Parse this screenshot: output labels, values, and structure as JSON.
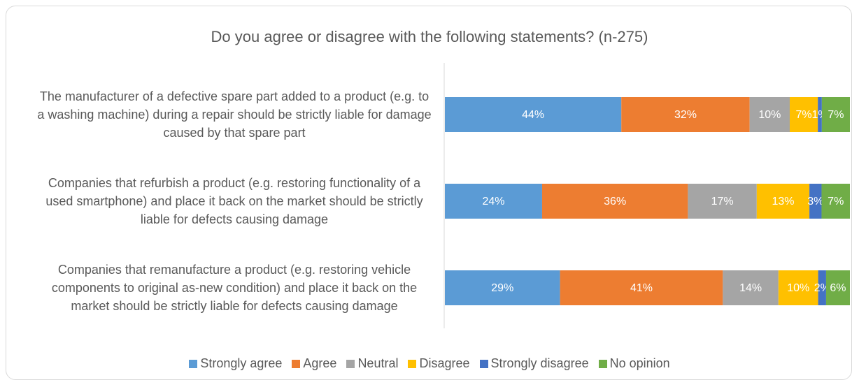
{
  "chart_data": {
    "type": "bar",
    "title": "Do you agree or disagree with the following statements? (n-275)",
    "categories": [
      "The manufacturer of a defective spare part added to a product (e.g. to a washing machine) during a repair should be strictly liable for damage caused by that spare part",
      "Companies that refurbish a product (e.g. restoring functionality of a used smartphone) and place it back on the market should be strictly liable for defects causing damage",
      "Companies that remanufacture a product (e.g. restoring vehicle components to original as-new condition) and place it back on the market should be strictly liable for defects causing damage"
    ],
    "series": [
      {
        "name": "Strongly agree",
        "color": "#5b9bd5",
        "values": [
          44,
          24,
          29
        ],
        "value_labels": [
          "44%",
          "24%",
          "29%"
        ]
      },
      {
        "name": "Agree",
        "color": "#ed7d31",
        "values": [
          32,
          36,
          41
        ],
        "value_labels": [
          "32%",
          "36%",
          "41%"
        ]
      },
      {
        "name": "Neutral",
        "color": "#a5a5a5",
        "values": [
          10,
          17,
          14
        ],
        "value_labels": [
          "10%",
          "17%",
          "14%"
        ]
      },
      {
        "name": "Disagree",
        "color": "#ffc000",
        "values": [
          7,
          13,
          10
        ],
        "value_labels": [
          "7%",
          "13%",
          "10%"
        ]
      },
      {
        "name": "Strongly disagree",
        "color": "#4472c4",
        "values": [
          1,
          3,
          2
        ],
        "value_labels": [
          "1%",
          "3%",
          "2%"
        ]
      },
      {
        "name": "No opinion",
        "color": "#70ad47",
        "values": [
          7,
          7,
          6
        ],
        "value_labels": [
          "7%",
          "7%",
          "6%"
        ]
      }
    ]
  }
}
